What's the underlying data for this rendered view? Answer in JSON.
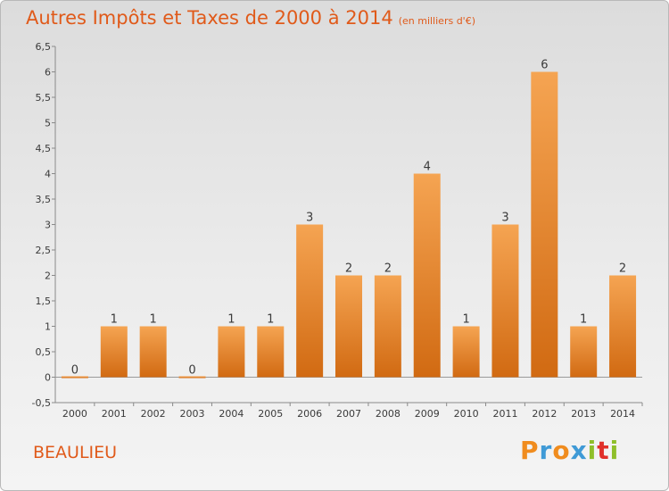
{
  "title": "Autres Impôts et Taxes de 2000 à 2014",
  "unit_note": "(en milliers d'€)",
  "commune": "BEAULIEU",
  "logo": {
    "text": "Proxiti",
    "letters": [
      "P",
      "r",
      "o",
      "x",
      "i",
      "t",
      "i"
    ],
    "colors": [
      "#f08c1e",
      "#3f9ad6",
      "#f08c1e",
      "#3f9ad6",
      "#8fbf2a",
      "#e0302a",
      "#8fbf2a"
    ]
  },
  "colors": {
    "bar_light": "#f5a452",
    "bar_dark": "#d16a12",
    "accent": "#e05a1a"
  },
  "chart_data": {
    "type": "bar",
    "categories": [
      "2000",
      "2001",
      "2002",
      "2003",
      "2004",
      "2005",
      "2006",
      "2007",
      "2008",
      "2009",
      "2010",
      "2011",
      "2012",
      "2013",
      "2014"
    ],
    "values": [
      0,
      1,
      1,
      0,
      1,
      1,
      3,
      2,
      2,
      4,
      1,
      3,
      6,
      1,
      2
    ],
    "value_labels": [
      "0",
      "1",
      "1",
      "0",
      "1",
      "1",
      "3",
      "2",
      "2",
      "4",
      "1",
      "3",
      "6",
      "1",
      "2"
    ],
    "yticks": [
      "-0,5",
      "0",
      "0,5",
      "1",
      "1,5",
      "2",
      "2,5",
      "3",
      "3,5",
      "4",
      "4,5",
      "5",
      "5,5",
      "6",
      "6,5"
    ],
    "ylim": [
      -0.5,
      6.5
    ],
    "grid": false
  }
}
